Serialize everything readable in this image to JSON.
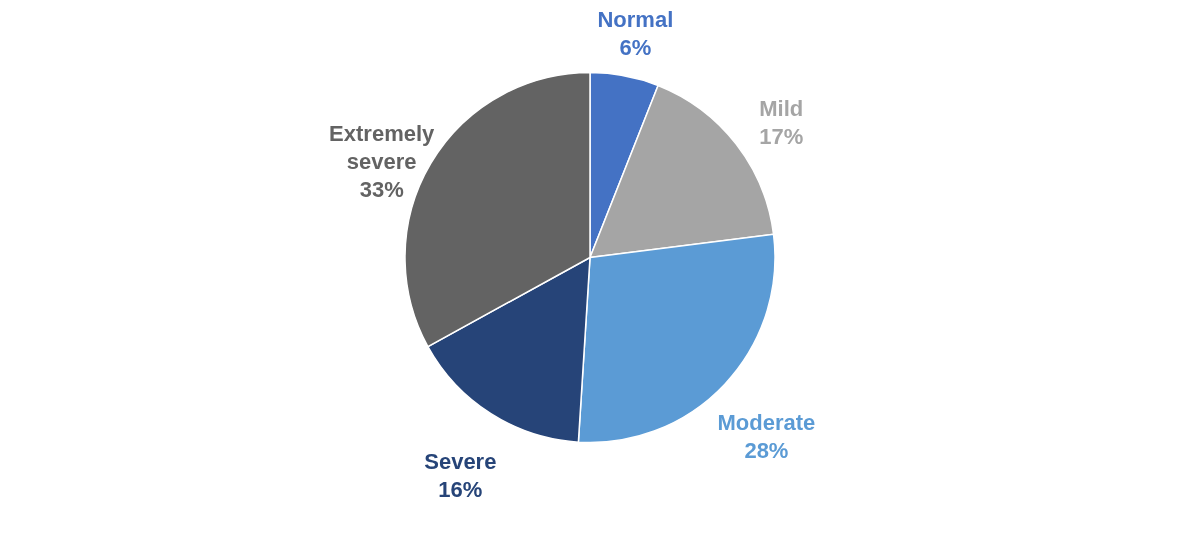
{
  "chart_data": {
    "type": "pie",
    "categories": [
      "Normal",
      "Mild",
      "Moderate",
      "Severe",
      "Extremely severe"
    ],
    "values": [
      6,
      17,
      28,
      16,
      33
    ],
    "colors": [
      "#4472c4",
      "#a5a5a5",
      "#5b9bd5",
      "#264478",
      "#636363"
    ],
    "value_labels": [
      "6%",
      "17%",
      "28%",
      "16%",
      "33%"
    ],
    "legend": false
  }
}
